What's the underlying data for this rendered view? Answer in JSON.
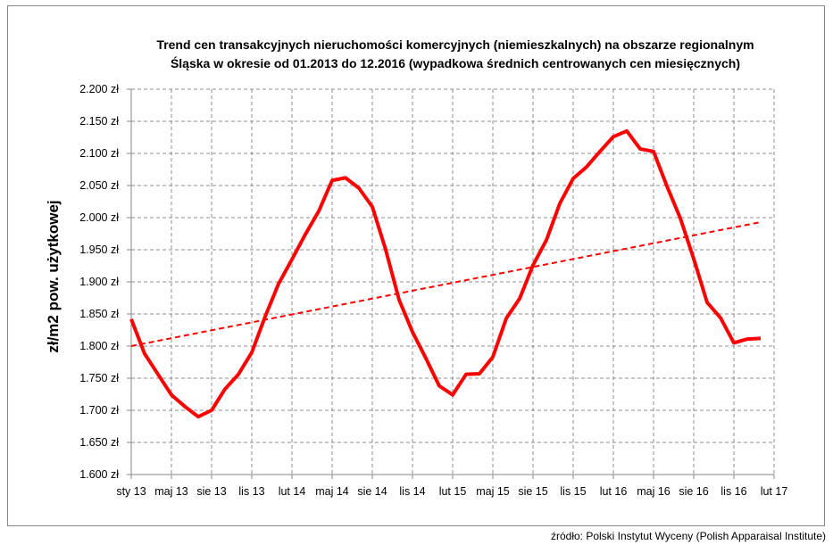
{
  "chart_data": {
    "type": "line",
    "title_lines": [
      "Trend cen transakcyjnych nieruchomości komercyjnych (niemieszkalnych) na obszarze regionalnym",
      "Śląska w okresie od 01.2013 do 12.2016 (wypadkowa średnich centrowanych cen miesięcznych)"
    ],
    "ylabel": "zł/m2 pow. użytkowej",
    "xlabel": "",
    "ylim": [
      1600,
      2200
    ],
    "y_ticks": [
      "1.600 zł",
      "1.650 zł",
      "1.700 zł",
      "1.750 zł",
      "1.800 zł",
      "1.850 zł",
      "1.900 zł",
      "1.950 zł",
      "2.000 zł",
      "2.050 zł",
      "2.100 zł",
      "2.150 zł",
      "2.200 zł"
    ],
    "x_ticks": [
      "sty 13",
      "maj 13",
      "sie 13",
      "lis 13",
      "lut 14",
      "maj 14",
      "sie 14",
      "lis 14",
      "lut 15",
      "maj 15",
      "sie 15",
      "lis 15",
      "lut 16",
      "maj 16",
      "sie 16",
      "lis 16",
      "lut 17"
    ],
    "grid": true,
    "series": [
      {
        "color": "#ff0000",
        "style": "solid",
        "x_start": "2013-01",
        "x_end": "2016-12",
        "values": [
          1842,
          1788,
          1756,
          1724,
          1706,
          1690,
          1700,
          1733,
          1756,
          1790,
          1846,
          1897,
          1935,
          1974,
          2010,
          2058,
          2062,
          2046,
          2017,
          1950,
          1872,
          1822,
          1781,
          1738,
          1724,
          1756,
          1757,
          1783,
          1843,
          1874,
          1926,
          1965,
          2022,
          2061,
          2079,
          2103,
          2126,
          2135,
          2107,
          2103,
          2049,
          1999,
          1936,
          1868,
          1844,
          1805,
          1811,
          1812
        ]
      }
    ],
    "trendline": {
      "type": "linear",
      "color": "#ff0000",
      "style": "dashed",
      "start_value": 1800,
      "end_value": 1993
    }
  },
  "source": "źródło: Polski Instytut Wyceny (Polish Apparaisal Institute)"
}
